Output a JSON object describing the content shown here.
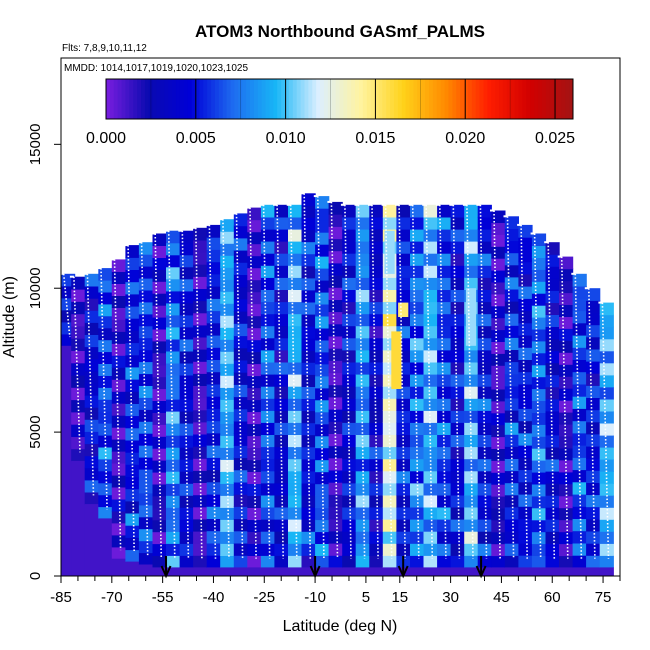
{
  "chart_data": {
    "type": "heatmap",
    "title": "ATOM3 Northbound GASmf_PALMS",
    "flights_note": "Flts: 7,8,9,10,11,12",
    "dates_note": "MMDD: 1014,1017,1019,1020,1023,1025",
    "xlabel": "Latitude (deg N)",
    "ylabel": "Altitude (m)",
    "xlim": [
      -85,
      80
    ],
    "ylim": [
      0,
      18000
    ],
    "x_ticks": [
      -85,
      -70,
      -55,
      -40,
      -25,
      -10,
      5,
      15,
      30,
      45,
      60,
      75
    ],
    "x_tick_labels": [
      "-85",
      "-70",
      "-55",
      "-40",
      "-25",
      "-10",
      "5",
      "15",
      "30",
      "45",
      "60",
      "75"
    ],
    "y_ticks": [
      0,
      5000,
      10000,
      15000
    ],
    "y_tick_labels": [
      "0",
      "5000",
      "10000",
      "15000"
    ],
    "colorbar": {
      "range": [
        0,
        0.026
      ],
      "ticks": [
        0.0,
        0.005,
        0.01,
        0.015,
        0.02,
        0.025
      ],
      "tick_labels": [
        "0.000",
        "0.005",
        "0.010",
        "0.015",
        "0.020",
        "0.025"
      ],
      "colors": [
        "#7a1ee0",
        "#0a0ab0",
        "#0000d8",
        "#1e6cf0",
        "#18b6f6",
        "#dcefff",
        "#fff3a0",
        "#ffd21a",
        "#ff8a00",
        "#ff1e00",
        "#d10000",
        "#a31414"
      ]
    },
    "arrows_latitude": [
      -54,
      -10,
      16,
      39
    ],
    "profile_columns": [
      {
        "lat": -83,
        "top": 10500,
        "base": 8000,
        "value": 0.0045
      },
      {
        "lat": -80,
        "top": 10400,
        "base": 4000,
        "value": 0.0015
      },
      {
        "lat": -76,
        "top": 10500,
        "base": 2500,
        "value": 0.004
      },
      {
        "lat": -72,
        "top": 10700,
        "base": 2000,
        "value": 0.006
      },
      {
        "lat": -68,
        "top": 11000,
        "base": 600,
        "value": 0.0015
      },
      {
        "lat": -64,
        "top": 11500,
        "base": 500,
        "value": 0.005
      },
      {
        "lat": -60,
        "top": 11600,
        "base": 400,
        "value": 0.006
      },
      {
        "lat": -56,
        "top": 11900,
        "base": 300,
        "value": 0.0015
      },
      {
        "lat": -52,
        "top": 12000,
        "base": 300,
        "value": 0.007
      },
      {
        "lat": -48,
        "top": 12000,
        "base": 300,
        "value": 0.0045
      },
      {
        "lat": -44,
        "top": 12100,
        "base": 300,
        "value": 0.0015
      },
      {
        "lat": -40,
        "top": 12200,
        "base": 300,
        "value": 0.005
      },
      {
        "lat": -36,
        "top": 12400,
        "base": 300,
        "value": 0.009
      },
      {
        "lat": -32,
        "top": 12600,
        "base": 300,
        "value": 0.0045
      },
      {
        "lat": -28,
        "top": 12800,
        "base": 300,
        "value": 0.0015
      },
      {
        "lat": -24,
        "top": 12900,
        "base": 300,
        "value": 0.006
      },
      {
        "lat": -20,
        "top": 12900,
        "base": 300,
        "value": 0.004
      },
      {
        "lat": -16,
        "top": 12900,
        "base": 300,
        "value": 0.009
      },
      {
        "lat": -12,
        "top": 13300,
        "base": 300,
        "value": 0.0045
      },
      {
        "lat": -8,
        "top": 13200,
        "base": 300,
        "value": 0.006
      },
      {
        "lat": -4,
        "top": 13000,
        "base": 300,
        "value": 0.0015
      },
      {
        "lat": 0,
        "top": 12900,
        "base": 300,
        "value": 0.004
      },
      {
        "lat": 4,
        "top": 12900,
        "base": 300,
        "value": 0.008
      },
      {
        "lat": 8,
        "top": 12900,
        "base": 300,
        "value": 0.0035
      },
      {
        "lat": 12,
        "top": 12900,
        "base": 300,
        "value": 0.012
      },
      {
        "lat": 16,
        "top": 12900,
        "base": 300,
        "value": 0.0045
      },
      {
        "lat": 20,
        "top": 12900,
        "base": 300,
        "value": 0.007
      },
      {
        "lat": 24,
        "top": 12900,
        "base": 300,
        "value": 0.009
      },
      {
        "lat": 28,
        "top": 12900,
        "base": 300,
        "value": 0.006
      },
      {
        "lat": 32,
        "top": 12900,
        "base": 300,
        "value": 0.004
      },
      {
        "lat": 36,
        "top": 12900,
        "base": 300,
        "value": 0.009
      },
      {
        "lat": 40,
        "top": 12900,
        "base": 300,
        "value": 0.0045
      },
      {
        "lat": 44,
        "top": 12700,
        "base": 300,
        "value": 0.0015
      },
      {
        "lat": 48,
        "top": 12500,
        "base": 300,
        "value": 0.005
      },
      {
        "lat": 52,
        "top": 12200,
        "base": 300,
        "value": 0.0045
      },
      {
        "lat": 56,
        "top": 11900,
        "base": 300,
        "value": 0.007
      },
      {
        "lat": 60,
        "top": 11600,
        "base": 300,
        "value": 0.004
      },
      {
        "lat": 64,
        "top": 11100,
        "base": 300,
        "value": 0.0015
      },
      {
        "lat": 68,
        "top": 10500,
        "base": 300,
        "value": 0.006
      },
      {
        "lat": 72,
        "top": 10000,
        "base": 300,
        "value": 0.0045
      },
      {
        "lat": 76,
        "top": 9500,
        "base": 300,
        "value": 0.009
      }
    ],
    "enhanced_features": [
      {
        "lat": 14,
        "alt_low": 6500,
        "alt_high": 8500,
        "value": 0.016
      },
      {
        "lat": 16,
        "alt_low": 9000,
        "alt_high": 9500,
        "value": 0.015
      },
      {
        "lat": 12,
        "alt_low": 10500,
        "alt_high": 12000,
        "value": 0.011
      },
      {
        "lat": 36,
        "alt_low": 8000,
        "alt_high": 10000,
        "value": 0.011
      }
    ]
  }
}
